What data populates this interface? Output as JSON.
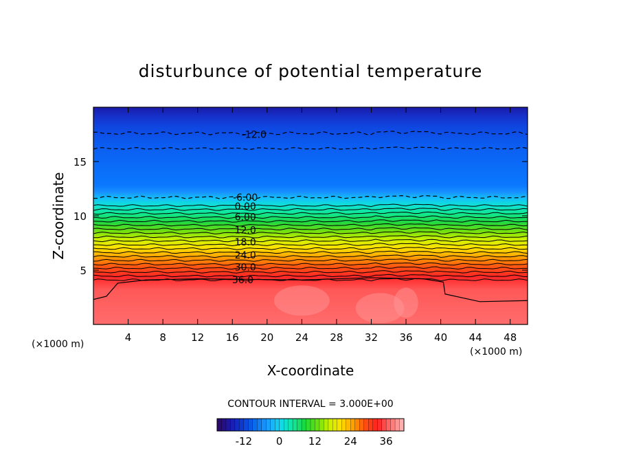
{
  "chart_data": {
    "type": "contour",
    "title": "disturbunce of potential temperature",
    "xlabel": "X-coordinate",
    "ylabel": "Z-coordinate",
    "x_unit": "(×1000 m)",
    "z_unit": "(×1000 m)",
    "xlim": [
      0,
      50
    ],
    "zlim": [
      0,
      20
    ],
    "x_ticks": [
      4,
      8,
      12,
      16,
      20,
      24,
      28,
      32,
      36,
      40,
      44,
      48
    ],
    "z_ticks": [
      5,
      10,
      15
    ],
    "contour_interval_text": "CONTOUR INTERVAL = 3.000E+00",
    "contour_interval": 3.0,
    "contour_labels": [
      "-12.0",
      "-6.00",
      "0.00",
      "6.00",
      "12.0",
      "18.0",
      "24.0",
      "30.0",
      "36.0"
    ],
    "contour_label_positions": [
      {
        "label": "-12.0",
        "x": 18.5,
        "z": 17.5
      },
      {
        "label": "-6.00",
        "x": 17.5,
        "z": 11.7
      },
      {
        "label": "0.00",
        "x": 17.5,
        "z": 10.9
      },
      {
        "label": "6.00",
        "x": 17.5,
        "z": 9.9
      },
      {
        "label": "12.0",
        "x": 17.5,
        "z": 8.7
      },
      {
        "label": "18.0",
        "x": 17.5,
        "z": 7.6
      },
      {
        "label": "24.0",
        "x": 17.5,
        "z": 6.4
      },
      {
        "label": "30.0",
        "x": 17.5,
        "z": 5.3
      },
      {
        "label": "36.0",
        "x": 17.2,
        "z": 4.1
      }
    ],
    "colorbar": {
      "min": -21,
      "max": 42,
      "ticks": [
        -12,
        0,
        12,
        24,
        36
      ],
      "tick_labels": [
        "-12",
        "0",
        "12",
        "24",
        "36"
      ]
    },
    "colormap": [
      "#2a0a6e",
      "#1a1ab0",
      "#0b3fd6",
      "#0a6ef0",
      "#1aa0ff",
      "#10d8f0",
      "#10e8a0",
      "#18d840",
      "#60e010",
      "#c8f000",
      "#ffe000",
      "#ffa000",
      "#ff5010",
      "#ff2020",
      "#ff6a6a",
      "#ffb0b0"
    ]
  }
}
